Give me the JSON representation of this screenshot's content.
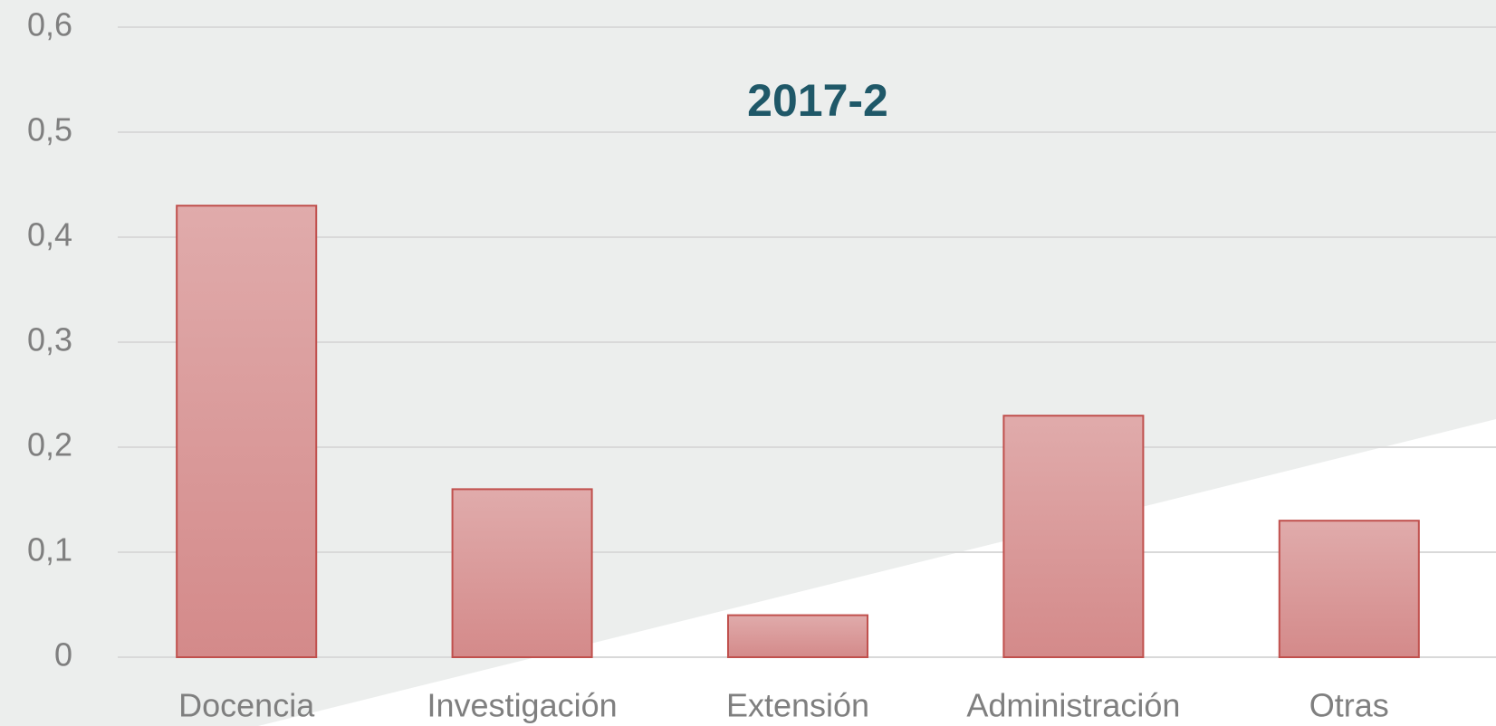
{
  "chart_data": {
    "type": "bar",
    "title": "2017-2",
    "categories": [
      "Docencia",
      "Investigación",
      "Extensión",
      "Administración",
      "Otras"
    ],
    "values": [
      0.43,
      0.16,
      0.04,
      0.23,
      0.13
    ],
    "color": "#d98f8f",
    "ylim": [
      0,
      0.6
    ],
    "yticks": [
      0,
      {
        "value": 0.1,
        "label": "0,1"
      },
      {
        "value": 0.2,
        "label": "0,2"
      },
      {
        "value": 0.3,
        "label": "0,3"
      },
      {
        "value": 0.4,
        "label": "0,4"
      },
      {
        "value": 0.5,
        "label": "0,5"
      },
      {
        "value": 0.6,
        "label": "0,6"
      }
    ],
    "grid": true
  }
}
